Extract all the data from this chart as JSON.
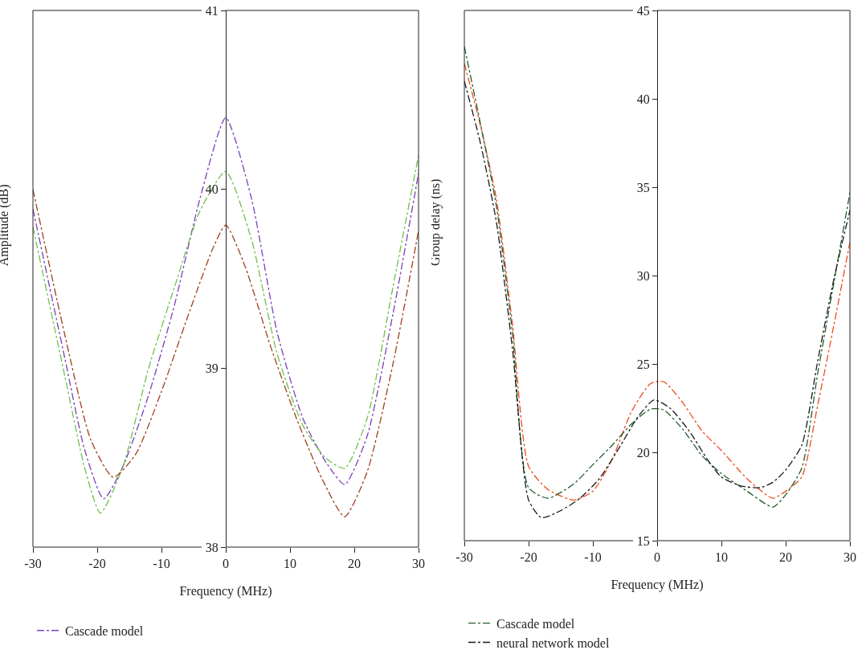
{
  "chart_data": [
    {
      "type": "line",
      "xlabel": "Frequency (MHz)",
      "ylabel": "Amplitude (dB)",
      "xlim": [
        -30,
        30
      ],
      "xticks": [
        -30,
        -20,
        -10,
        0,
        10,
        20,
        30
      ],
      "ylim": [
        38,
        41
      ],
      "yticks": [
        38,
        39,
        40,
        41
      ],
      "legend": "bottom left",
      "line_style": "dashdot",
      "marker": "none",
      "series": [
        {
          "name": "Cascade model",
          "color": "#7b3fb8",
          "x": [
            -30,
            -25,
            -22,
            -19,
            -16,
            -12,
            -8,
            -4,
            0,
            4,
            8,
            12,
            15.5,
            18.5,
            22,
            26,
            30
          ],
          "values": [
            39.89,
            39.05,
            38.55,
            38.27,
            38.45,
            38.85,
            39.35,
            39.95,
            40.4,
            39.95,
            39.2,
            38.72,
            38.48,
            38.35,
            38.62,
            39.3,
            40.09
          ]
        },
        {
          "color": "#6cc24a",
          "x": [
            -30,
            -25,
            -22,
            -19.5,
            -16,
            -12,
            -8,
            -4,
            0,
            4,
            8,
            12,
            15.5,
            18.5,
            22,
            26,
            30
          ],
          "values": [
            39.79,
            38.95,
            38.45,
            38.19,
            38.45,
            39.0,
            39.45,
            39.88,
            40.1,
            39.72,
            39.08,
            38.68,
            38.5,
            38.44,
            38.72,
            39.45,
            40.19
          ]
        },
        {
          "color": "#a0401c",
          "x": [
            -30,
            -25,
            -21,
            -17.5,
            -14,
            -10,
            -6,
            -2,
            0,
            3,
            7,
            11,
            15,
            18.5,
            22,
            26,
            30
          ],
          "values": [
            40.0,
            39.18,
            38.6,
            38.39,
            38.52,
            38.87,
            39.28,
            39.67,
            39.8,
            39.57,
            39.12,
            38.72,
            38.38,
            38.17,
            38.42,
            39.02,
            39.77
          ]
        }
      ]
    },
    {
      "type": "line",
      "xlabel": "Frequency (MHz)",
      "ylabel": "Group delay (ns)",
      "xlim": [
        -30,
        30
      ],
      "xticks": [
        -30,
        -20,
        -10,
        0,
        10,
        20,
        30
      ],
      "ylim": [
        15,
        45
      ],
      "yticks": [
        15,
        20,
        25,
        30,
        35,
        40,
        45
      ],
      "legend": "bottom left",
      "line_style": "dashdot",
      "marker": "none",
      "series": [
        {
          "color": "#f04a1c",
          "x": [
            -30,
            -27.5,
            -25,
            -22.5,
            -20,
            -17,
            -13,
            -10,
            -7,
            -4,
            -1,
            1,
            4,
            7,
            10,
            14,
            18,
            20,
            22.5,
            25,
            27.5,
            30
          ],
          "values": [
            42.0,
            38.5,
            34.3,
            27.2,
            19.2,
            17.9,
            17.3,
            17.8,
            19.6,
            22.3,
            23.9,
            24.0,
            22.8,
            21.2,
            20.1,
            18.5,
            17.4,
            17.8,
            18.6,
            22.7,
            27.2,
            31.9
          ]
        },
        {
          "name": "Cascade model",
          "color": "#1f5e2a",
          "x": [
            -30,
            -27.5,
            -25,
            -22.5,
            -20,
            -17,
            -13,
            -10,
            -7,
            -4,
            -1,
            1,
            4,
            7,
            10,
            14,
            18,
            20,
            22.5,
            25,
            27.5,
            30
          ],
          "values": [
            42.96,
            38.6,
            33.9,
            26.7,
            18.0,
            17.4,
            18.2,
            19.3,
            20.4,
            21.6,
            22.45,
            22.4,
            21.3,
            19.8,
            18.8,
            17.8,
            16.9,
            17.6,
            19.1,
            24.5,
            29.6,
            34.7
          ]
        },
        {
          "name": "neural network model",
          "color": "#1a1a1a",
          "x": [
            -30,
            -27.5,
            -25,
            -22.5,
            -20,
            -18,
            -15,
            -12,
            -9,
            -6,
            -3,
            -0.5,
            2,
            5,
            8,
            10,
            13,
            16,
            18,
            20,
            22.5,
            25,
            27.5,
            30
          ],
          "values": [
            41.0,
            37.5,
            33.0,
            25.8,
            17.3,
            16.3,
            16.7,
            17.4,
            18.5,
            20.2,
            22.0,
            22.96,
            22.5,
            21.2,
            19.5,
            18.6,
            18.1,
            18.0,
            18.3,
            19.0,
            20.4,
            25.2,
            29.8,
            33.7
          ]
        }
      ]
    }
  ]
}
